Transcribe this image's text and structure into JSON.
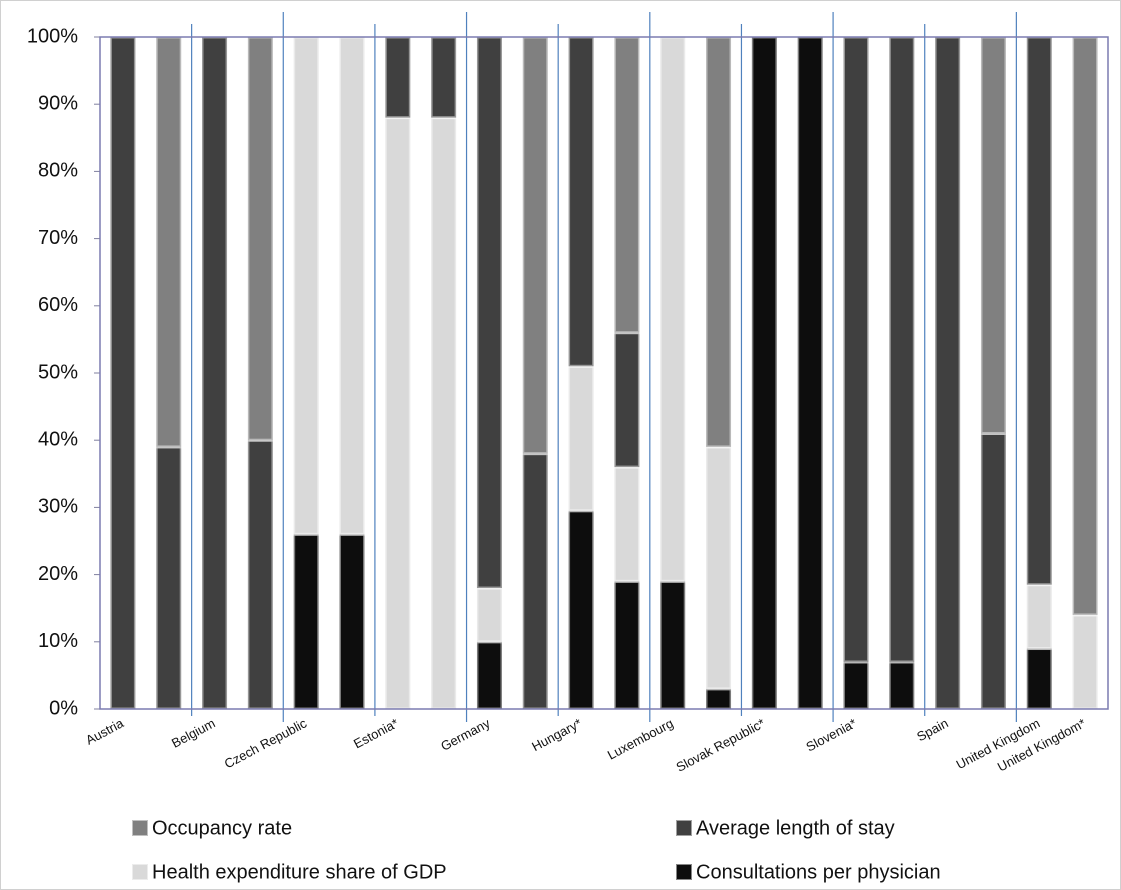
{
  "chart_data": {
    "type": "stacked_bar",
    "categories": [
      "Austria",
      null,
      "Belgium",
      null,
      "Czech Republic",
      null,
      "Estonia*",
      null,
      "Germany",
      null,
      "Hungary*",
      null,
      "Luxembourg",
      null,
      "Slovak Republic*",
      null,
      "Slovenia*",
      null,
      "Spain",
      null,
      "United Kingdom",
      "United Kingdom*"
    ],
    "series": [
      {
        "name": "Consultations per physician",
        "color": "#0d0d0d",
        "values": [
          0,
          0,
          0,
          0,
          26,
          26,
          0,
          0,
          10,
          0,
          29.5,
          19,
          19,
          3,
          100,
          100,
          7,
          7,
          0,
          0,
          9,
          0
        ]
      },
      {
        "name": "Health expenditure share of GDP",
        "color": "#d9d9d9",
        "values": [
          0,
          0,
          0,
          0,
          74,
          74,
          88,
          88,
          8,
          0,
          21.5,
          17,
          81,
          36,
          0,
          0,
          0,
          0,
          0,
          0,
          9.5,
          14
        ]
      },
      {
        "name": "Average length of stay",
        "color": "#404040",
        "values": [
          100,
          39,
          100,
          40,
          0,
          0,
          12,
          12,
          82,
          38,
          49,
          20,
          0,
          0,
          0,
          0,
          93,
          93,
          100,
          41,
          81.5,
          0
        ]
      },
      {
        "name": "Occupancy rate",
        "color": "#808080",
        "values": [
          0,
          61,
          0,
          60,
          0,
          0,
          0,
          0,
          0,
          62,
          0,
          44,
          0,
          61,
          0,
          0,
          0,
          0,
          0,
          59,
          0,
          86
        ]
      }
    ],
    "ylim": [
      0,
      100
    ],
    "yticks": [
      {
        "value": 0,
        "label": "0%"
      },
      {
        "value": 10,
        "label": "10%"
      },
      {
        "value": 20,
        "label": "20%"
      },
      {
        "value": 30,
        "label": "30%"
      },
      {
        "value": 40,
        "label": "40%"
      },
      {
        "value": 50,
        "label": "50%"
      },
      {
        "value": 60,
        "label": "60%"
      },
      {
        "value": 70,
        "label": "70%"
      },
      {
        "value": 80,
        "label": "80%"
      },
      {
        "value": 90,
        "label": "90%"
      },
      {
        "value": 100,
        "label": "100%"
      }
    ]
  }
}
